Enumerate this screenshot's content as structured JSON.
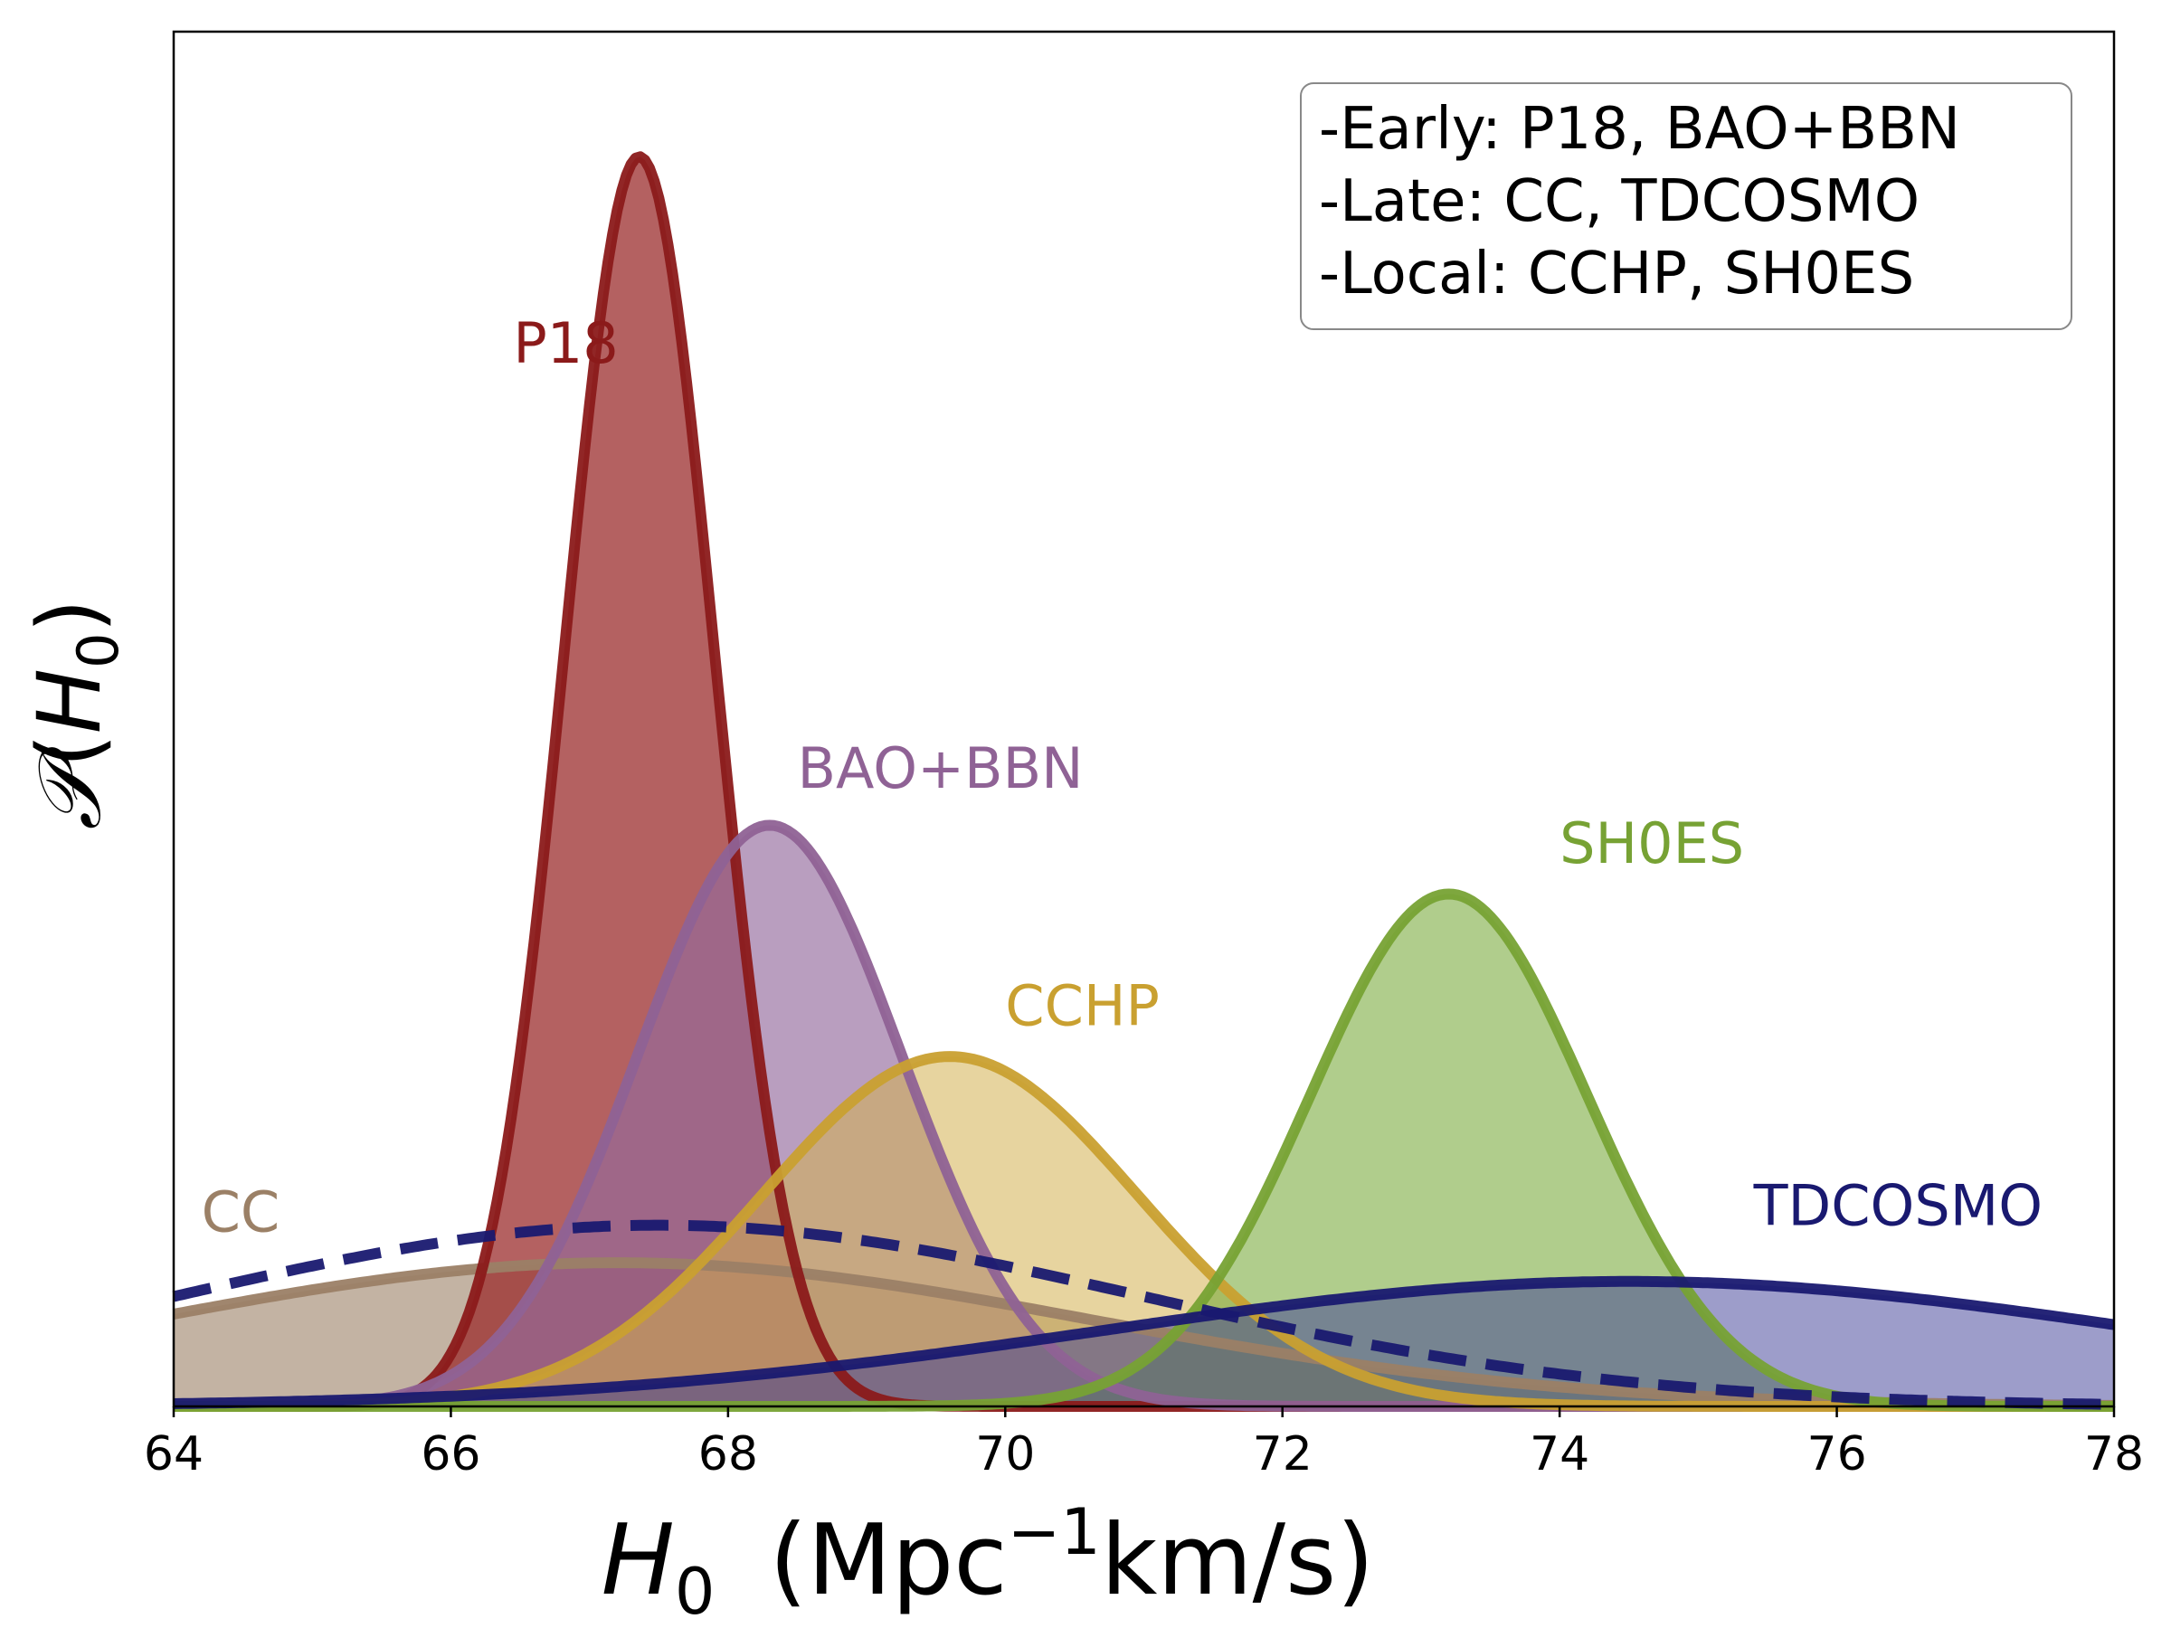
{
  "chart_data": {
    "type": "area",
    "xlabel_var": "H",
    "xlabel_sub": "0",
    "xlabel_unit": "(Mpc",
    "xlabel_sup": "−1",
    "xlabel_unit2": "km/s)",
    "ylabel_script": "𝒫",
    "ylabel_open": "(",
    "ylabel_var": "H",
    "ylabel_sub": "0",
    "ylabel_close": ")",
    "xlim": [
      64,
      78
    ],
    "ylim": [
      0,
      1.1
    ],
    "xticks": [
      "64",
      "66",
      "68",
      "70",
      "72",
      "74",
      "76",
      "78"
    ],
    "grid": false,
    "legend": {
      "placement": "top-right",
      "lines": [
        "-Early: P18, BAO+BBN",
        "-Late: CC, TDCOSMO",
        "-Local: CCHP, SH0ES"
      ]
    },
    "series": [
      {
        "name": "CC",
        "mean": 67.2,
        "sigma": 3.4,
        "peak": 0.115,
        "line": "#9b8066",
        "fill": "#9b8066",
        "fill_opacity": 0.6,
        "dashed": false
      },
      {
        "name": "P18",
        "mean": 67.36,
        "sigma": 0.54,
        "peak": 1.0,
        "line": "#8b1a1a",
        "fill": "#9b2c2c",
        "fill_opacity": 0.75,
        "dashed": false
      },
      {
        "name": "BAO+BBN",
        "mean": 68.3,
        "sigma": 0.95,
        "peak": 0.465,
        "line": "#8f6295",
        "fill": "#946a9c",
        "fill_opacity": 0.65,
        "dashed": false
      },
      {
        "name": "CCHP",
        "mean": 69.6,
        "sigma": 1.35,
        "peak": 0.28,
        "line": "#c9a030",
        "fill": "#d4b050",
        "fill_opacity": 0.55,
        "dashed": false
      },
      {
        "name": "SH0ES",
        "mean": 73.2,
        "sigma": 1.0,
        "peak": 0.41,
        "line": "#77a234",
        "fill": "#7cac40",
        "fill_opacity": 0.6,
        "dashed": false
      },
      {
        "name": "TDCOSMO",
        "mean": 74.5,
        "sigma": 3.8,
        "peak": 0.1,
        "line": "#191970",
        "fill": "#3b3b96",
        "fill_opacity": 0.5,
        "dashed": false
      },
      {
        "name": "",
        "mean": 67.5,
        "sigma": 3.5,
        "peak": 0.145,
        "line": "#191970",
        "fill": "none",
        "fill_opacity": 0,
        "dashed": true
      }
    ],
    "labels": [
      {
        "text": "P18",
        "color": "#8b1a1a",
        "x": 66.45,
        "y": 0.835
      },
      {
        "text": "BAO+BBN",
        "color": "#8f6295",
        "x": 68.5,
        "y": 0.495
      },
      {
        "text": "CCHP",
        "color": "#c9a030",
        "x": 70.0,
        "y": 0.305
      },
      {
        "text": "SH0ES",
        "color": "#77a234",
        "x": 74.0,
        "y": 0.435
      },
      {
        "text": "CC",
        "color": "#9b8066",
        "x": 64.2,
        "y": 0.14
      },
      {
        "text": "TDCOSMO",
        "color": "#191970",
        "x": 75.4,
        "y": 0.145
      }
    ]
  }
}
